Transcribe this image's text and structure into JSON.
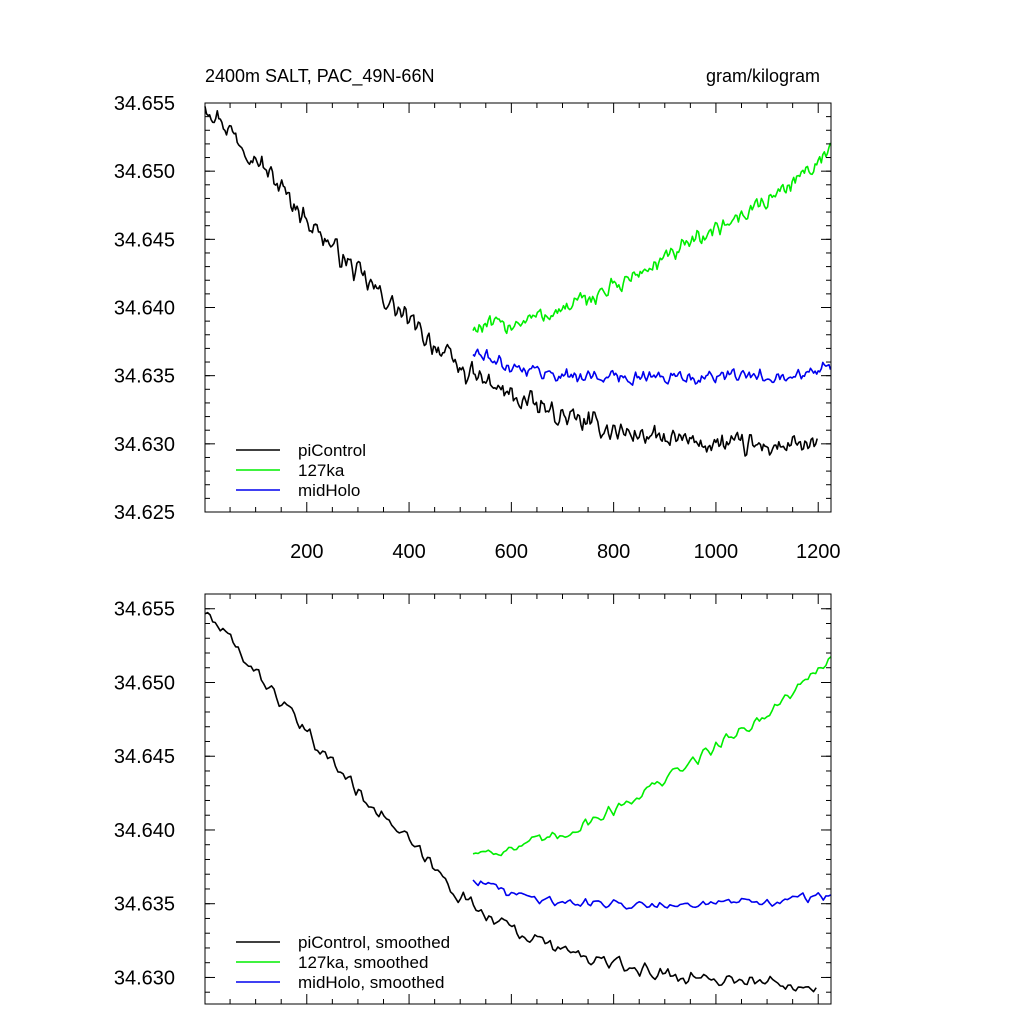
{
  "colors": {
    "piControl": "#000000",
    "127ka": "#00ee00",
    "midHolo": "#0000ee"
  },
  "chart_data": [
    {
      "type": "line",
      "title_left": "2400m SALT, PAC_49N-66N",
      "title_right": "gram/kilogram",
      "xlabel": "",
      "ylabel": "",
      "xlim": [
        1,
        1225
      ],
      "ylim": [
        34.625,
        34.655
      ],
      "xticks": [
        "200",
        "400",
        "600",
        "800",
        "1000",
        "1200"
      ],
      "yticks": [
        "34.625",
        "34.630",
        "34.635",
        "34.640",
        "34.645",
        "34.650",
        "34.655"
      ],
      "legend_position": "bottom-left",
      "series": [
        {
          "name": "piControl",
          "x": [
            1,
            100,
            200,
            300,
            400,
            500,
            600,
            700,
            800,
            900,
            1000,
            1100,
            1200
          ],
          "values": [
            34.655,
            34.651,
            34.6465,
            34.6425,
            34.639,
            34.6355,
            34.6335,
            34.632,
            34.631,
            34.6303,
            34.63,
            34.6298,
            34.6298
          ]
        },
        {
          "name": "127ka",
          "x": [
            525,
            600,
            700,
            800,
            900,
            1000,
            1100,
            1225
          ],
          "values": [
            34.6385,
            34.6388,
            34.6398,
            34.6415,
            34.6435,
            34.6458,
            34.6478,
            34.6515
          ]
        },
        {
          "name": "midHolo",
          "x": [
            525,
            600,
            700,
            800,
            900,
            1000,
            1100,
            1225
          ],
          "values": [
            34.6367,
            34.6357,
            34.635,
            34.6349,
            34.6349,
            34.6349,
            34.635,
            34.6355
          ]
        }
      ]
    },
    {
      "type": "line",
      "title_left": "",
      "title_right": "",
      "xlabel": "",
      "ylabel": "",
      "xlim": [
        1,
        1225
      ],
      "ylim": [
        34.6282,
        34.656
      ],
      "xticks": [],
      "yticks": [
        "34.630",
        "34.635",
        "34.640",
        "34.645",
        "34.650",
        "34.655"
      ],
      "legend_position": "bottom-left",
      "series": [
        {
          "name": "piControl, smoothed",
          "x": [
            1,
            100,
            200,
            300,
            400,
            500,
            600,
            700,
            800,
            900,
            1000,
            1100,
            1200
          ],
          "values": [
            34.6548,
            34.6508,
            34.6465,
            34.6427,
            34.6392,
            34.6355,
            34.6333,
            34.6318,
            34.6309,
            34.6302,
            34.6299,
            34.6297,
            34.6295
          ]
        },
        {
          "name": "127ka, smoothed",
          "x": [
            525,
            600,
            700,
            800,
            900,
            1000,
            1100,
            1225
          ],
          "values": [
            34.6385,
            34.6387,
            34.6397,
            34.6414,
            34.6434,
            34.6457,
            34.6478,
            34.6517
          ]
        },
        {
          "name": "midHolo, smoothed",
          "x": [
            525,
            600,
            700,
            800,
            900,
            1000,
            1100,
            1225
          ],
          "values": [
            34.6367,
            34.6357,
            34.6351,
            34.635,
            34.635,
            34.635,
            34.6351,
            34.6356
          ]
        }
      ]
    }
  ]
}
